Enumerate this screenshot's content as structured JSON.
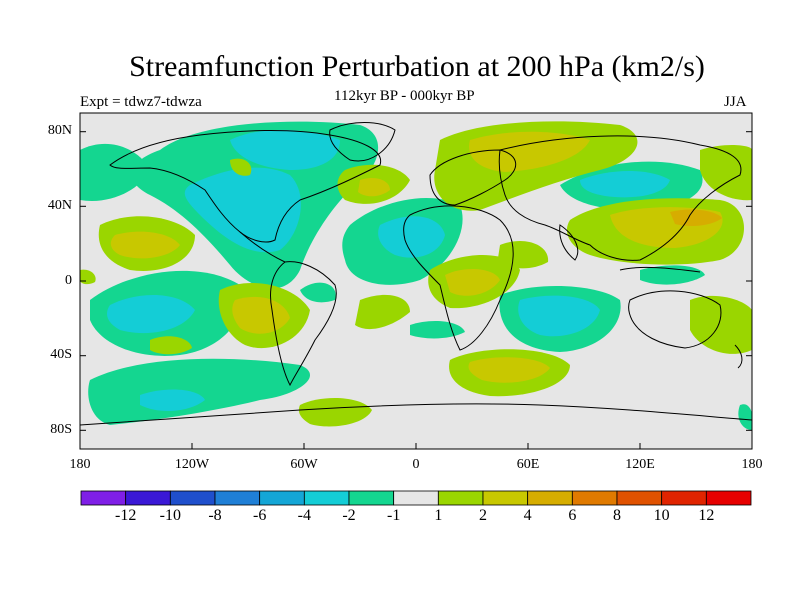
{
  "title": "Streamfunction Perturbation at 200 hPa (km2/s)",
  "subtitle": "112kyr BP - 000kyr BP",
  "experiment": "Expt = tdwz7-tdwza",
  "season": "JJA",
  "map": {
    "projection": "cylindrical equidistant",
    "lat_labels": [
      "80N",
      "40N",
      "0",
      "40S",
      "80S"
    ],
    "lon_labels": [
      "180",
      "120W",
      "60W",
      "0",
      "60E",
      "120E",
      "180"
    ]
  },
  "colorbar": {
    "labels": [
      "-12",
      "-10",
      "-8",
      "-6",
      "-4",
      "-2",
      "-1",
      "1",
      "2",
      "4",
      "6",
      "8",
      "10",
      "12"
    ],
    "colors": [
      "#7f1fe6",
      "#3a18d6",
      "#1f4fcc",
      "#1f7fd6",
      "#14a6d6",
      "#14cdd6",
      "#14d690",
      "#e6e6e6",
      "#9ad600",
      "#c8c800",
      "#d6ad00",
      "#e07a00",
      "#e05200",
      "#e02400",
      "#e60000"
    ]
  }
}
